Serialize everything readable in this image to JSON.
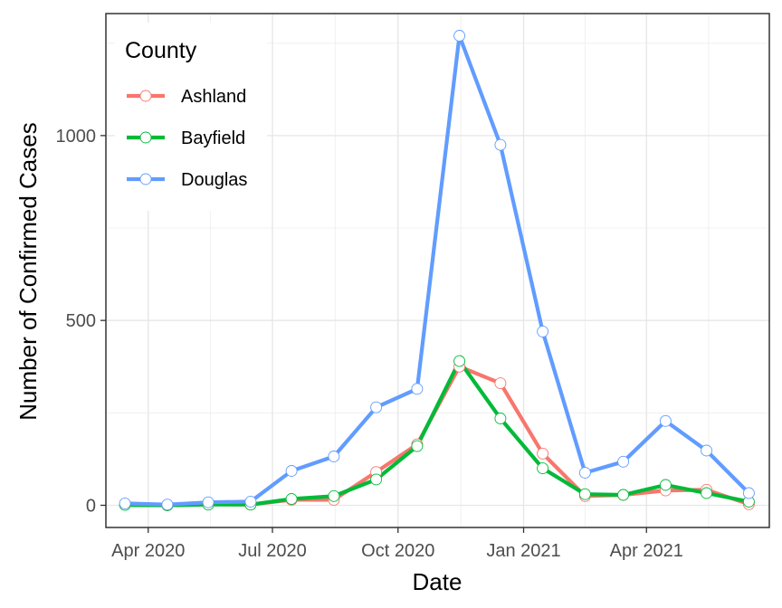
{
  "chart_data": {
    "type": "line",
    "xlabel": "Date",
    "ylabel": "Number of Confirmed Cases",
    "x": [
      "2020-03-15",
      "2020-04-15",
      "2020-05-15",
      "2020-06-15",
      "2020-07-15",
      "2020-08-15",
      "2020-09-15",
      "2020-10-15",
      "2020-11-15",
      "2020-12-15",
      "2021-01-15",
      "2021-02-15",
      "2021-03-15",
      "2021-04-15",
      "2021-05-15",
      "2021-06-15"
    ],
    "series": [
      {
        "name": "Ashland",
        "color": "#F8766D",
        "values": [
          2,
          0,
          3,
          2,
          15,
          15,
          90,
          165,
          375,
          330,
          140,
          25,
          28,
          40,
          42,
          3
        ]
      },
      {
        "name": "Bayfield",
        "color": "#00BA38",
        "values": [
          1,
          0,
          2,
          2,
          17,
          25,
          70,
          160,
          390,
          235,
          100,
          30,
          28,
          55,
          33,
          10
        ]
      },
      {
        "name": "Douglas",
        "color": "#619CFF",
        "values": [
          5,
          2,
          8,
          10,
          93,
          132,
          265,
          315,
          1270,
          975,
          470,
          88,
          118,
          228,
          148,
          33
        ]
      }
    ],
    "x_ticks": [
      {
        "date": "2020-04-01",
        "label": "Apr 2020"
      },
      {
        "date": "2020-07-01",
        "label": "Jul 2020"
      },
      {
        "date": "2020-10-01",
        "label": "Oct 2020"
      },
      {
        "date": "2021-01-01",
        "label": "Jan 2021"
      },
      {
        "date": "2021-04-01",
        "label": "Apr 2021"
      }
    ],
    "y_ticks": [
      0,
      500,
      1000
    ],
    "xlim": [
      "2020-03-01",
      "2021-06-30"
    ],
    "ylim": [
      -60,
      1330
    ],
    "legend": {
      "title": "County",
      "position": "top-left"
    },
    "grid": true
  }
}
